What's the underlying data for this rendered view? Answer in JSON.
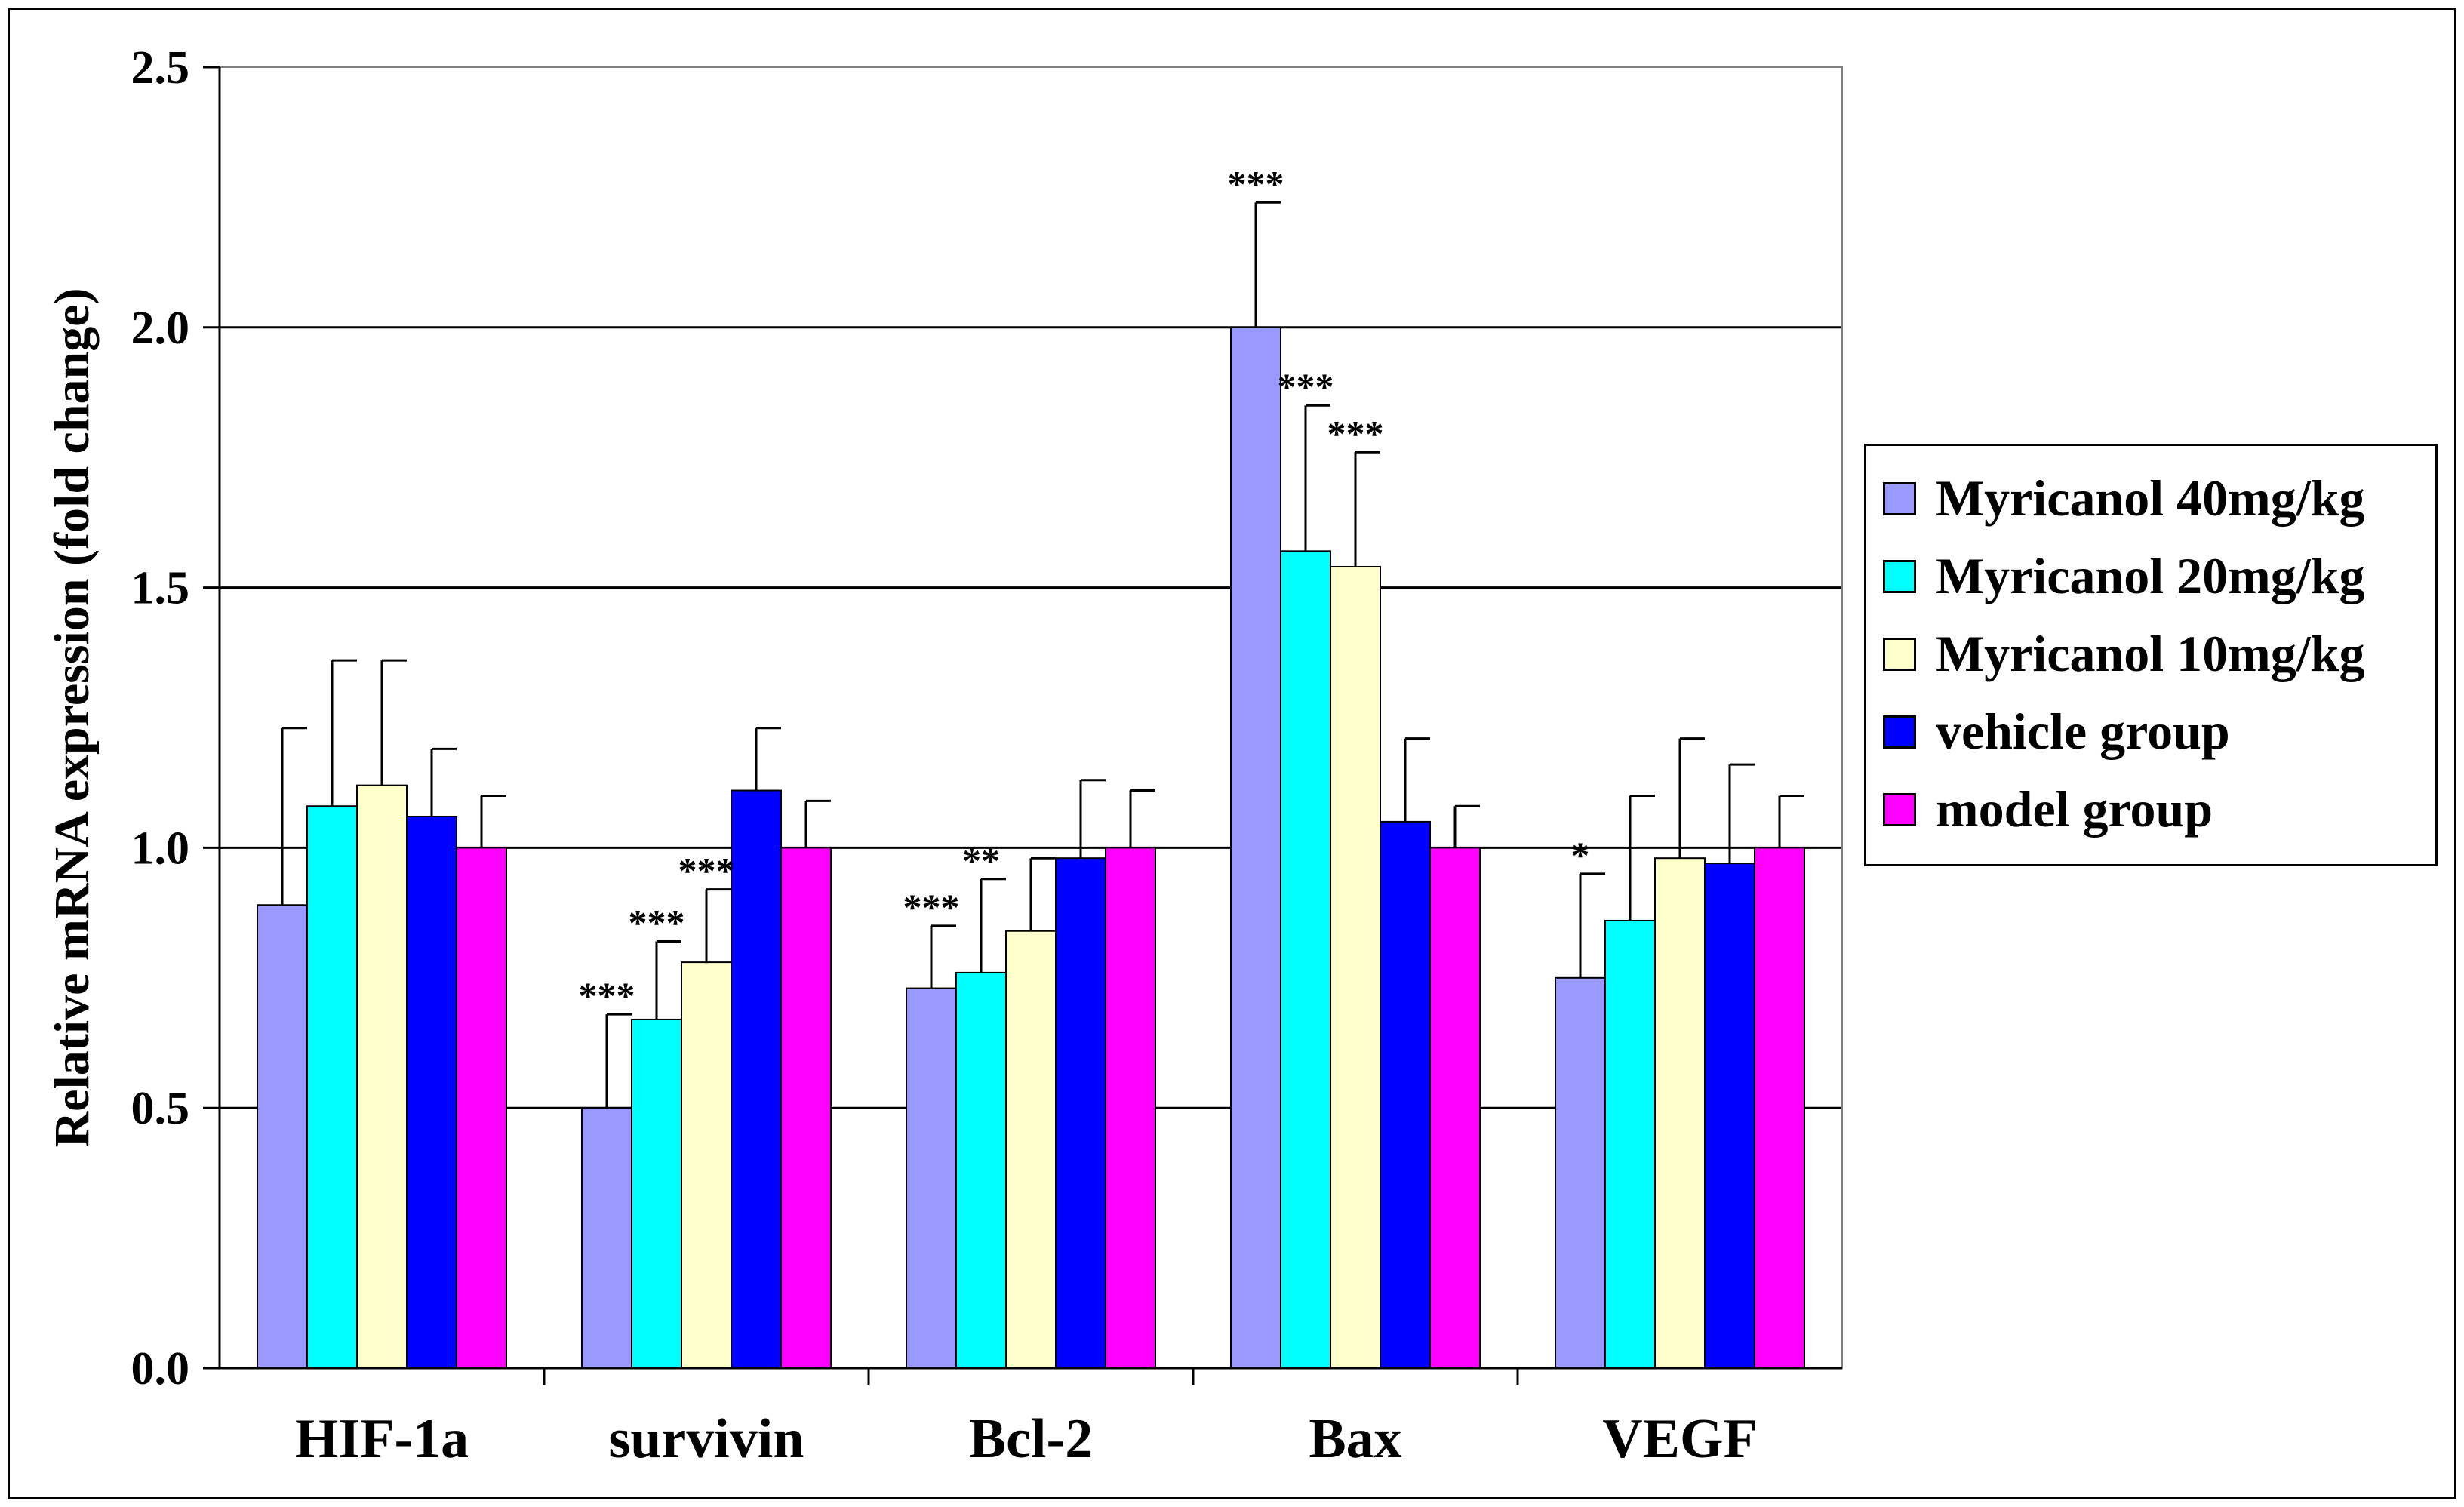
{
  "chart_data": {
    "type": "bar",
    "title": "",
    "xlabel": "",
    "ylabel": "Relative mRNA expression (fold change)",
    "ylim": [
      0,
      2.5
    ],
    "yticks": [
      "0.0",
      "0.5",
      "1.0",
      "1.5",
      "2.0",
      "2.5"
    ],
    "ytick_values": [
      0,
      0.5,
      1.0,
      1.5,
      2.0,
      2.5
    ],
    "grid": "horizontal",
    "legend_position": "right",
    "categories": [
      "HIF-1a",
      "survivin",
      "Bcl-2",
      "Bax",
      "VEGF"
    ],
    "series": [
      {
        "name": "Myricanol 40mg/kg",
        "color": "#9999ff",
        "values": [
          0.89,
          0.5,
          0.73,
          2.0,
          0.75
        ],
        "errors": [
          0.34,
          0.18,
          0.12,
          0.24,
          0.2
        ],
        "significance": [
          "",
          "***",
          "***",
          "***",
          "*"
        ]
      },
      {
        "name": "Myricanol 20mg/kg",
        "color": "#00ffff",
        "values": [
          1.08,
          0.67,
          0.76,
          1.57,
          0.86
        ],
        "errors": [
          0.28,
          0.15,
          0.18,
          0.28,
          0.24
        ],
        "significance": [
          "",
          "***",
          "**",
          "***",
          ""
        ]
      },
      {
        "name": "Myricanol 10mg/kg",
        "color": "#ffffcc",
        "values": [
          1.12,
          0.78,
          0.84,
          1.54,
          0.98
        ],
        "errors": [
          0.24,
          0.14,
          0.14,
          0.22,
          0.23
        ],
        "significance": [
          "",
          "***",
          "",
          "***",
          ""
        ]
      },
      {
        "name": "vehicle group",
        "color": "#0000ff",
        "values": [
          1.06,
          1.11,
          0.98,
          1.05,
          0.97
        ],
        "errors": [
          0.13,
          0.12,
          0.15,
          0.16,
          0.19
        ],
        "significance": [
          "",
          "",
          "",
          "",
          ""
        ]
      },
      {
        "name": "model group",
        "color": "#ff00ff",
        "values": [
          1.0,
          1.0,
          1.0,
          1.0,
          1.0
        ],
        "errors": [
          0.1,
          0.09,
          0.11,
          0.08,
          0.1
        ],
        "significance": [
          "",
          "",
          "",
          "",
          ""
        ]
      }
    ]
  }
}
